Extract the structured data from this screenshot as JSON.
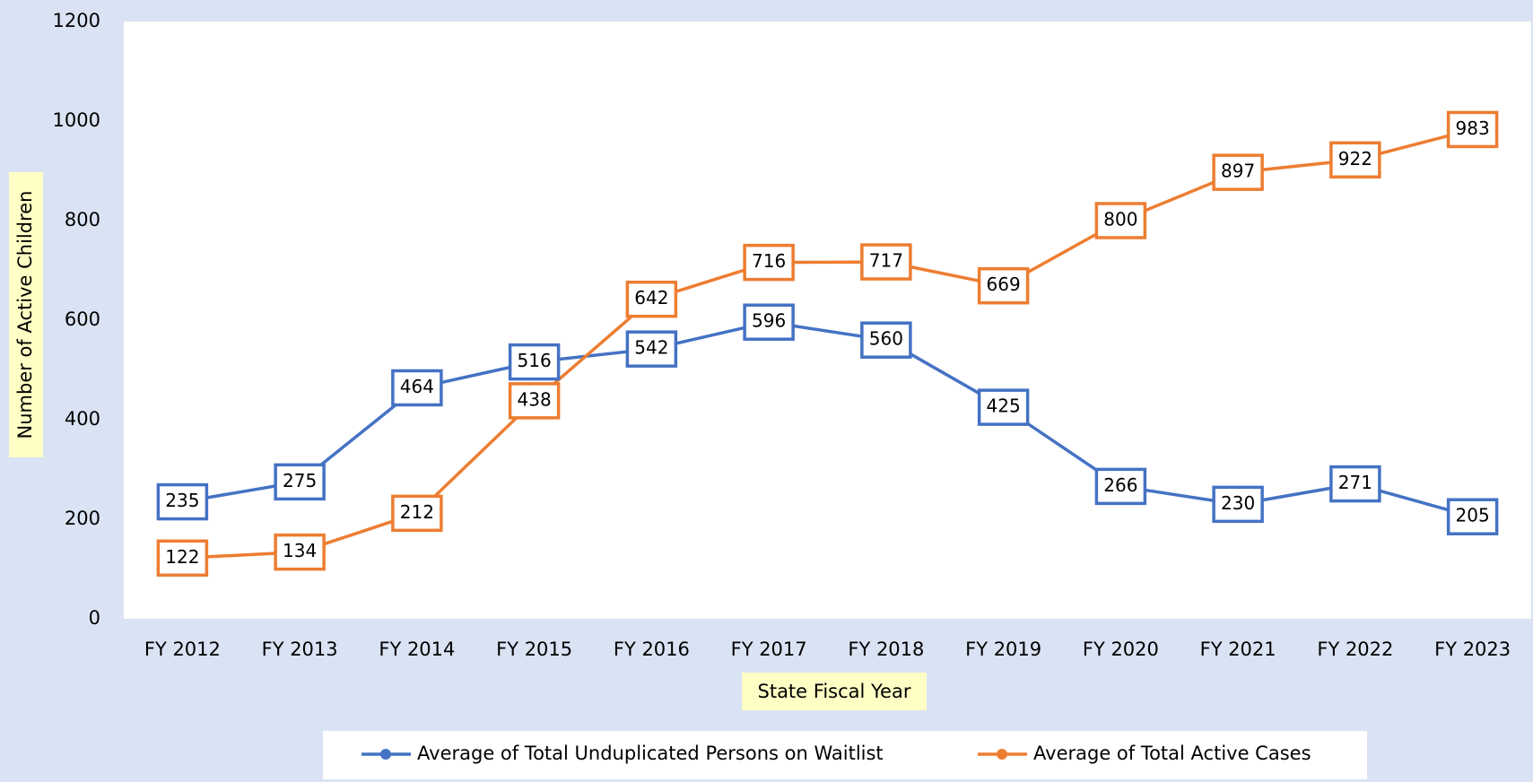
{
  "chart_data": {
    "type": "line",
    "x_label": "State Fiscal Year",
    "y_label": "Number of Active Children",
    "categories": [
      "FY 2012",
      "FY 2013",
      "FY 2014",
      "FY 2015",
      "FY 2016",
      "FY 2017",
      "FY 2018",
      "FY 2019",
      "FY 2020",
      "FY 2021",
      "FY 2022",
      "FY 2023"
    ],
    "series": [
      {
        "name": "Average of Total Unduplicated Persons on Waitlist",
        "color": "#4472c4",
        "values": [
          235,
          275,
          464,
          516,
          542,
          596,
          560,
          425,
          266,
          230,
          271,
          205
        ]
      },
      {
        "name": "Average of Total Active Cases",
        "color": "#ed7d31",
        "values": [
          122,
          134,
          212,
          438,
          642,
          716,
          717,
          669,
          800,
          897,
          922,
          983
        ]
      }
    ],
    "ylim": [
      0,
      1200
    ],
    "yticks": [
      0,
      200,
      400,
      600,
      800,
      1000,
      1200
    ],
    "grid": false,
    "legend": "bottom"
  }
}
